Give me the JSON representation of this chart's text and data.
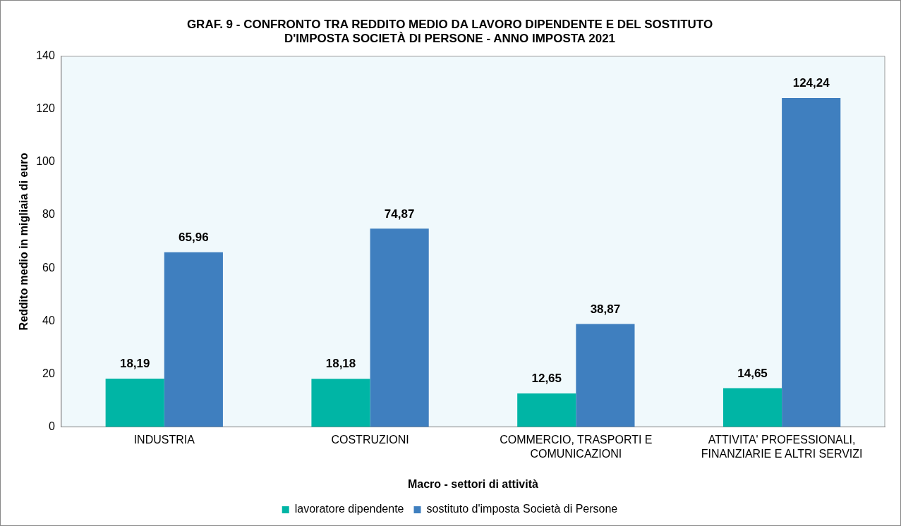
{
  "chart_data": {
    "type": "bar",
    "title": "GRAF. 9 - CONFRONTO TRA REDDITO MEDIO DA LAVORO DIPENDENTE E DEL SOSTITUTO\nD'IMPOSTA SOCIETÀ DI PERSONE - ANNO IMPOSTA 2021",
    "xlabel": "Macro - settori di attività",
    "ylabel": "Reddito medio in migliaia di euro",
    "categories": [
      "INDUSTRIA",
      "COSTRUZIONI",
      "COMMERCIO, TRASPORTI E COMUNICAZIONI",
      "ATTIVITA' PROFESSIONALI, FINANZIARIE E ALTRI SERVIZI"
    ],
    "series": [
      {
        "name": "lavoratore dipendente",
        "color": "#00b5a5",
        "values": [
          18.19,
          18.18,
          12.65,
          14.65
        ],
        "value_labels": [
          "18,19",
          "18,18",
          "12,65",
          "14,65"
        ]
      },
      {
        "name": "sostituto d'imposta Società di Persone",
        "color": "#3f7fbf",
        "values": [
          65.96,
          74.87,
          38.87,
          124.24
        ],
        "value_labels": [
          "65,96",
          "74,87",
          "38,87",
          "124,24"
        ]
      }
    ],
    "ylim": [
      0,
      140
    ],
    "yticks": [
      0,
      20,
      40,
      60,
      80,
      100,
      120,
      140
    ],
    "grid": false,
    "legend": "bottom"
  }
}
